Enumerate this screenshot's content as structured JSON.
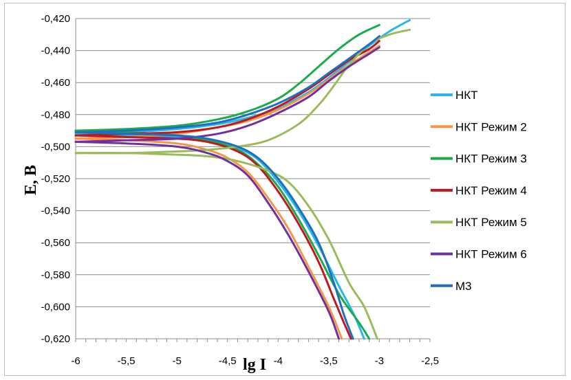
{
  "chart_data": {
    "type": "line",
    "title": "",
    "xlabel": "lg I",
    "ylabel": "E, B",
    "xlim": [
      -6,
      -2.5
    ],
    "ylim": [
      -0.62,
      -0.42
    ],
    "xticks": [
      "-6",
      "-5,5",
      "-5",
      "-4,5",
      "-4",
      "-3,5",
      "-3",
      "-2,5"
    ],
    "yticks": [
      "-0,420",
      "-0,440",
      "-0,460",
      "-0,480",
      "-0,500",
      "-0,520",
      "-0,540",
      "-0,560",
      "-0,580",
      "-0,600",
      "-0,620"
    ],
    "grid": "horizontal",
    "legend_position": "right",
    "series": [
      {
        "name": "НКТ",
        "color": "#29b6e8",
        "anodic": [
          [
            -6,
            -0.492
          ],
          [
            -5.5,
            -0.491
          ],
          [
            -5,
            -0.489
          ],
          [
            -4.6,
            -0.486
          ],
          [
            -4.3,
            -0.482
          ],
          [
            -4,
            -0.476
          ],
          [
            -3.7,
            -0.466
          ],
          [
            -3.5,
            -0.457
          ],
          [
            -3.3,
            -0.447
          ],
          [
            -3.1,
            -0.437
          ],
          [
            -2.9,
            -0.428
          ],
          [
            -2.7,
            -0.421
          ]
        ],
        "cathodic": [
          [
            -6,
            -0.492
          ],
          [
            -5.5,
            -0.493
          ],
          [
            -5,
            -0.494
          ],
          [
            -4.7,
            -0.496
          ],
          [
            -4.4,
            -0.501
          ],
          [
            -4.2,
            -0.508
          ],
          [
            -4,
            -0.522
          ],
          [
            -3.8,
            -0.54
          ],
          [
            -3.6,
            -0.562
          ],
          [
            -3.4,
            -0.587
          ],
          [
            -3.25,
            -0.605
          ],
          [
            -3.15,
            -0.62
          ]
        ]
      },
      {
        "name": "НКТ Режим 2",
        "color": "#f79646",
        "anodic": [
          [
            -6,
            -0.495
          ],
          [
            -5.5,
            -0.494
          ],
          [
            -5,
            -0.492
          ],
          [
            -4.6,
            -0.488
          ],
          [
            -4.3,
            -0.484
          ],
          [
            -4,
            -0.477
          ],
          [
            -3.7,
            -0.467
          ],
          [
            -3.5,
            -0.458
          ],
          [
            -3.3,
            -0.449
          ],
          [
            -3.1,
            -0.441
          ],
          [
            -3,
            -0.437
          ]
        ],
        "cathodic": [
          [
            -6,
            -0.495
          ],
          [
            -5.5,
            -0.496
          ],
          [
            -5,
            -0.498
          ],
          [
            -4.7,
            -0.502
          ],
          [
            -4.5,
            -0.507
          ],
          [
            -4.3,
            -0.516
          ],
          [
            -4.1,
            -0.532
          ],
          [
            -3.9,
            -0.551
          ],
          [
            -3.7,
            -0.575
          ],
          [
            -3.5,
            -0.6
          ],
          [
            -3.37,
            -0.62
          ]
        ]
      },
      {
        "name": "НКТ Режим 3",
        "color": "#1daa4a",
        "anodic": [
          [
            -6,
            -0.49
          ],
          [
            -5.5,
            -0.489
          ],
          [
            -5,
            -0.487
          ],
          [
            -4.6,
            -0.483
          ],
          [
            -4.3,
            -0.478
          ],
          [
            -4,
            -0.47
          ],
          [
            -3.8,
            -0.461
          ],
          [
            -3.6,
            -0.45
          ],
          [
            -3.4,
            -0.439
          ],
          [
            -3.2,
            -0.43
          ],
          [
            -3,
            -0.424
          ]
        ],
        "cathodic": [
          [
            -6,
            -0.49
          ],
          [
            -5.5,
            -0.491
          ],
          [
            -5,
            -0.493
          ],
          [
            -4.7,
            -0.496
          ],
          [
            -4.4,
            -0.502
          ],
          [
            -4.2,
            -0.511
          ],
          [
            -4,
            -0.525
          ],
          [
            -3.8,
            -0.545
          ],
          [
            -3.6,
            -0.568
          ],
          [
            -3.4,
            -0.592
          ],
          [
            -3.2,
            -0.61
          ],
          [
            -3.1,
            -0.62
          ]
        ]
      },
      {
        "name": "НКТ Режим 4",
        "color": "#c0181e",
        "anodic": [
          [
            -6,
            -0.493
          ],
          [
            -5.5,
            -0.492
          ],
          [
            -5,
            -0.491
          ],
          [
            -4.6,
            -0.488
          ],
          [
            -4.3,
            -0.483
          ],
          [
            -4,
            -0.475
          ],
          [
            -3.7,
            -0.464
          ],
          [
            -3.5,
            -0.455
          ],
          [
            -3.3,
            -0.446
          ],
          [
            -3.1,
            -0.439
          ],
          [
            -3,
            -0.434
          ]
        ],
        "cathodic": [
          [
            -6,
            -0.493
          ],
          [
            -5.5,
            -0.494
          ],
          [
            -5,
            -0.495
          ],
          [
            -4.7,
            -0.497
          ],
          [
            -4.4,
            -0.503
          ],
          [
            -4.2,
            -0.512
          ],
          [
            -4,
            -0.528
          ],
          [
            -3.8,
            -0.548
          ],
          [
            -3.6,
            -0.572
          ],
          [
            -3.45,
            -0.595
          ],
          [
            -3.35,
            -0.61
          ],
          [
            -3.28,
            -0.62
          ]
        ]
      },
      {
        "name": "НКТ Режим 5",
        "color": "#9bbb59",
        "anodic": [
          [
            -6,
            -0.504
          ],
          [
            -5.5,
            -0.504
          ],
          [
            -5,
            -0.503
          ],
          [
            -4.7,
            -0.502
          ],
          [
            -4.4,
            -0.5
          ],
          [
            -4.1,
            -0.496
          ],
          [
            -3.8,
            -0.486
          ],
          [
            -3.6,
            -0.474
          ],
          [
            -3.45,
            -0.462
          ],
          [
            -3.3,
            -0.449
          ],
          [
            -3.1,
            -0.436
          ],
          [
            -2.9,
            -0.43
          ],
          [
            -2.7,
            -0.427
          ]
        ],
        "cathodic": [
          [
            -6,
            -0.504
          ],
          [
            -5.5,
            -0.504
          ],
          [
            -5,
            -0.505
          ],
          [
            -4.7,
            -0.506
          ],
          [
            -4.4,
            -0.509
          ],
          [
            -4.1,
            -0.515
          ],
          [
            -3.9,
            -0.522
          ],
          [
            -3.7,
            -0.537
          ],
          [
            -3.5,
            -0.558
          ],
          [
            -3.3,
            -0.585
          ],
          [
            -3.15,
            -0.6
          ],
          [
            -3.02,
            -0.62
          ]
        ]
      },
      {
        "name": "НКТ Режим 6",
        "color": "#7030a0",
        "anodic": [
          [
            -6,
            -0.497
          ],
          [
            -5.5,
            -0.496
          ],
          [
            -5,
            -0.495
          ],
          [
            -4.6,
            -0.492
          ],
          [
            -4.3,
            -0.487
          ],
          [
            -4,
            -0.479
          ],
          [
            -3.7,
            -0.469
          ],
          [
            -3.5,
            -0.459
          ],
          [
            -3.3,
            -0.45
          ],
          [
            -3.1,
            -0.442
          ],
          [
            -3,
            -0.438
          ]
        ],
        "cathodic": [
          [
            -6,
            -0.497
          ],
          [
            -5.5,
            -0.498
          ],
          [
            -5,
            -0.5
          ],
          [
            -4.7,
            -0.504
          ],
          [
            -4.5,
            -0.509
          ],
          [
            -4.3,
            -0.518
          ],
          [
            -4.1,
            -0.535
          ],
          [
            -3.9,
            -0.555
          ],
          [
            -3.7,
            -0.578
          ],
          [
            -3.5,
            -0.603
          ],
          [
            -3.4,
            -0.62
          ]
        ]
      },
      {
        "name": "М3",
        "color": "#1f6fc0",
        "anodic": [
          [
            -6,
            -0.491
          ],
          [
            -5.5,
            -0.49
          ],
          [
            -5,
            -0.488
          ],
          [
            -4.6,
            -0.485
          ],
          [
            -4.3,
            -0.48
          ],
          [
            -4,
            -0.473
          ],
          [
            -3.7,
            -0.463
          ],
          [
            -3.5,
            -0.454
          ],
          [
            -3.3,
            -0.445
          ],
          [
            -3.1,
            -0.436
          ],
          [
            -3,
            -0.431
          ]
        ],
        "cathodic": [
          [
            -6,
            -0.491
          ],
          [
            -5.5,
            -0.492
          ],
          [
            -5,
            -0.493
          ],
          [
            -4.7,
            -0.495
          ],
          [
            -4.4,
            -0.5
          ],
          [
            -4.2,
            -0.507
          ],
          [
            -4,
            -0.52
          ],
          [
            -3.8,
            -0.538
          ],
          [
            -3.6,
            -0.56
          ],
          [
            -3.45,
            -0.585
          ],
          [
            -3.35,
            -0.605
          ],
          [
            -3.26,
            -0.62
          ]
        ]
      }
    ]
  }
}
